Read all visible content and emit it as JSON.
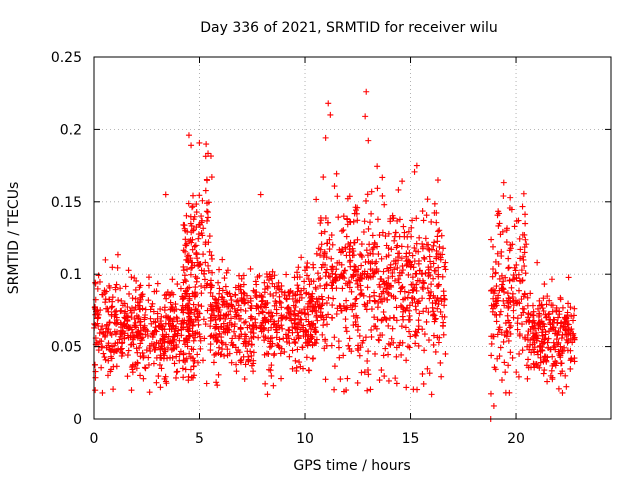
{
  "chart_data": {
    "type": "scatter",
    "title": "Day 336 of 2021, SRMTID for receiver wilu",
    "xlabel": "GPS time / hours",
    "ylabel": "SRMTID / TECUs",
    "xlim": [
      0,
      24.5
    ],
    "ylim": [
      0,
      0.25
    ],
    "xticks": [
      0,
      5,
      10,
      15,
      20
    ],
    "yticks": [
      0,
      0.05,
      0.1,
      0.15,
      0.2,
      0.25
    ],
    "xtick_labels": [
      "0",
      "5",
      "10",
      "15",
      "20"
    ],
    "ytick_labels": [
      "0",
      "0.05",
      "0.1",
      "0.15",
      "0.2",
      "0.25"
    ],
    "grid": true,
    "marker": "+",
    "color": "#ff0000",
    "series": [
      {
        "name": "SRMTID",
        "segments": [
          {
            "x_start": 0.0,
            "x_end": 5.0,
            "center": 0.062,
            "spread": 0.016
          },
          {
            "x_start": 4.2,
            "x_end": 5.6,
            "center": 0.11,
            "spread": 0.03
          },
          {
            "x_start": 5.5,
            "x_end": 10.5,
            "center": 0.068,
            "spread": 0.018
          },
          {
            "x_start": 10.5,
            "x_end": 16.7,
            "center": 0.092,
            "spread": 0.03
          },
          {
            "x_start": 18.8,
            "x_end": 20.5,
            "center": 0.085,
            "spread": 0.028
          },
          {
            "x_start": 20.5,
            "x_end": 22.8,
            "center": 0.058,
            "spread": 0.014
          }
        ],
        "notable_points": [
          {
            "x": 12.9,
            "y": 0.226
          },
          {
            "x": 11.1,
            "y": 0.218
          },
          {
            "x": 4.5,
            "y": 0.196
          },
          {
            "x": 4.6,
            "y": 0.189
          },
          {
            "x": 12.85,
            "y": 0.209
          },
          {
            "x": 11.2,
            "y": 0.21
          },
          {
            "x": 15.3,
            "y": 0.175
          },
          {
            "x": 16.3,
            "y": 0.165
          },
          {
            "x": 3.4,
            "y": 0.155
          },
          {
            "x": 7.9,
            "y": 0.155
          },
          {
            "x": 19.4,
            "y": 0.154
          },
          {
            "x": 21.0,
            "y": 0.108
          },
          {
            "x": 18.8,
            "y": 0.0
          },
          {
            "x": 18.95,
            "y": 0.009
          },
          {
            "x": 16.0,
            "y": 0.017
          },
          {
            "x": 0.4,
            "y": 0.018
          },
          {
            "x": 22.2,
            "y": 0.018
          },
          {
            "x": 8.5,
            "y": 0.023
          }
        ]
      }
    ]
  }
}
